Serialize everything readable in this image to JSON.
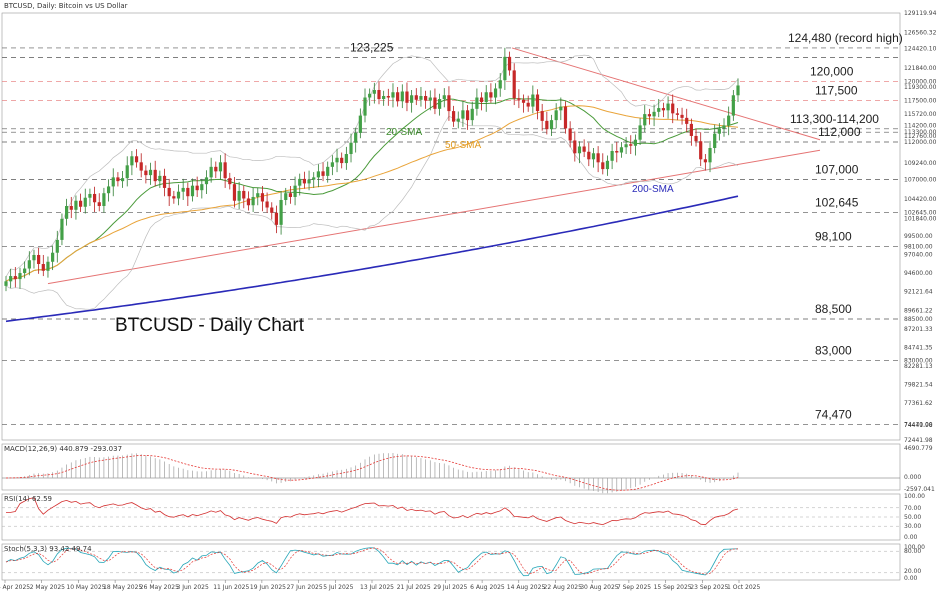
{
  "header": {
    "main": "BTCUSD, Daily:  Bitcoin vs US Dollar",
    "macd": "MACD(12,26,9) 440.879 -293.037",
    "rsi": "RSI(14) 62.59",
    "stoch": "Stoch(5,3,3) 93.42 49.74"
  },
  "chart_data": {
    "type": "candlestick",
    "title": "BTCUSD - Daily Chart",
    "y_axis_ticks": [
      "129119.94",
      "126560.32",
      "124420.10",
      "121840.00",
      "120000.00",
      "119300.00",
      "117500.00",
      "115720.00",
      "114200.00",
      "113300.00",
      "112760.00",
      "112000.00",
      "109240.00",
      "107000.00",
      "104420.00",
      "102645.00",
      "101840.00",
      "99500.00",
      "98100.00",
      "97040.00",
      "94600.00",
      "92121.64",
      "89661.22",
      "88500.00",
      "87201.33",
      "84741.35",
      "83000.00",
      "82281.13",
      "79821.54",
      "77361.62",
      "74470.00",
      "74441.98",
      "72441.98"
    ],
    "x_axis_ticks": [
      "24 Apr 2025",
      "2 May 2025",
      "10 May 2025",
      "18 May 2025",
      "26 May 2025",
      "3 Jun 2025",
      "11 Jun 2025",
      "19 Jun 2025",
      "27 Jun 2025",
      "5 Jul 2025",
      "13 Jul 2025",
      "21 Jul 2025",
      "29 Jul 2025",
      "6 Aug 2025",
      "14 Aug 2025",
      "22 Aug 2025",
      "30 Aug 2025",
      "7 Sep 2025",
      "15 Sep 2025",
      "23 Sep 2025",
      "1 Oct 2025"
    ],
    "levels": [
      {
        "label": "124,480 (record high)",
        "value": 124480
      },
      {
        "label": "123,225",
        "value": 123225
      },
      {
        "label": "120,000",
        "value": 120000
      },
      {
        "label": "117,500",
        "value": 117500
      },
      {
        "label": "113,300-114,200",
        "value": 113750
      },
      {
        "label": "112,000",
        "value": 112000
      },
      {
        "label": "107,000",
        "value": 107000
      },
      {
        "label": "102,645",
        "value": 102645
      },
      {
        "label": "98,100",
        "value": 98100
      },
      {
        "label": "88,500",
        "value": 88500
      },
      {
        "label": "83,000",
        "value": 83000
      },
      {
        "label": "74,470",
        "value": 74470
      }
    ],
    "series_labels": {
      "sma20": "20-SMA",
      "sma50": "50-SMA",
      "sma200": "200-SMA"
    },
    "closes": [
      93500,
      94200,
      93800,
      94600,
      95200,
      96300,
      97000,
      95800,
      94900,
      96100,
      97300,
      99000,
      101800,
      103500,
      103000,
      104200,
      103400,
      104600,
      105100,
      104000,
      103500,
      105200,
      106100,
      107300,
      106800,
      107200,
      108900,
      110100,
      109300,
      108200,
      107600,
      108300,
      106800,
      107500,
      105900,
      104800,
      104500,
      105400,
      105900,
      104800,
      106200,
      105600,
      106400,
      107300,
      108700,
      108100,
      109300,
      107200,
      106400,
      104200,
      105500,
      104500,
      103600,
      104700,
      105200,
      104100,
      103300,
      102600,
      101000,
      104300,
      105200,
      104700,
      106200,
      107100,
      106500,
      107000,
      107300,
      108100,
      107500,
      108700,
      109300,
      109900,
      109200,
      110400,
      111900,
      113200,
      115500,
      117900,
      118400,
      118900,
      117700,
      118100,
      117900,
      118600,
      117400,
      118700,
      117200,
      118200,
      117600,
      118100,
      117500,
      117900,
      116400,
      117700,
      118200,
      116100,
      114700,
      115100,
      116200,
      114900,
      116400,
      117900,
      117300,
      118600,
      117900,
      119100,
      120200,
      123300,
      121500,
      117800,
      117600,
      117200,
      116700,
      118300,
      116100,
      114800,
      113700,
      114900,
      116200,
      116700,
      113800,
      112200,
      110500,
      111400,
      110700,
      109700,
      110500,
      109300,
      108400,
      109500,
      110800,
      110600,
      111300,
      111700,
      111500,
      112300,
      114200,
      115700,
      115400,
      116000,
      116500,
      116200,
      117100,
      115800,
      115600,
      115200,
      114400,
      112800,
      112100,
      109700,
      109300,
      111200,
      113100,
      113800,
      114200,
      115500,
      118200,
      119500
    ]
  }
}
